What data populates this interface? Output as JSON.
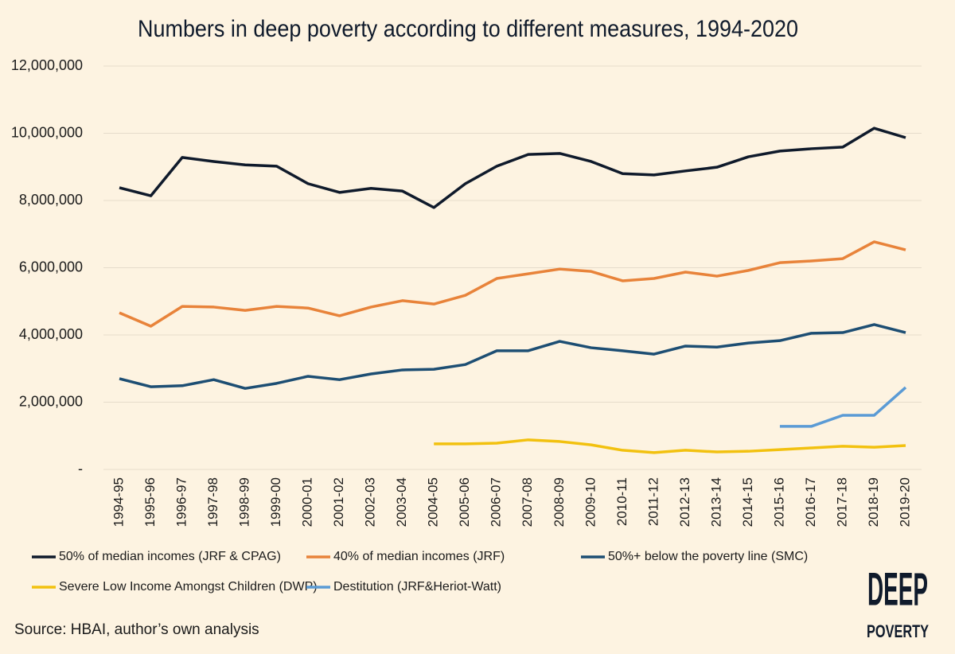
{
  "chart_data": {
    "type": "line",
    "title": "Numbers in deep poverty according to different measures, 1994-2020",
    "source": "Source: HBAI, author’s own analysis",
    "categories": [
      "1994-95",
      "1995-96",
      "1996-97",
      "1997-98",
      "1998-99",
      "1999-00",
      "2000-01",
      "2001-02",
      "2002-03",
      "2003-04",
      "2004-05",
      "2005-06",
      "2006-07",
      "2007-08",
      "2008-09",
      "2009-10",
      "2010-11",
      "2011-12",
      "2012-13",
      "2013-14",
      "2014-15",
      "2015-16",
      "2016-17",
      "2017-18",
      "2018-19",
      "2019-20"
    ],
    "ylim": [
      0,
      12000000
    ],
    "yticks": [
      {
        "value": 0,
        "label": "-"
      },
      {
        "value": 2000000,
        "label": "2,000,000"
      },
      {
        "value": 4000000,
        "label": "4,000,000"
      },
      {
        "value": 6000000,
        "label": "6,000,000"
      },
      {
        "value": 8000000,
        "label": "8,000,000"
      },
      {
        "value": 10000000,
        "label": "10,000,000"
      },
      {
        "value": 12000000,
        "label": "12,000,000"
      }
    ],
    "grid": true,
    "series": [
      {
        "name": "50% of median incomes (JRF & CPAG)",
        "color": "#0f1a2b",
        "values": [
          8380000,
          8140000,
          9280000,
          9160000,
          9060000,
          9020000,
          8500000,
          8240000,
          8360000,
          8280000,
          7790000,
          8500000,
          9020000,
          9370000,
          9400000,
          9160000,
          8800000,
          8760000,
          8880000,
          8990000,
          9300000,
          9470000,
          9540000,
          9590000,
          10150000,
          9870000
        ]
      },
      {
        "name": "40% of median incomes (JRF)",
        "color": "#e8833a",
        "values": [
          4660000,
          4260000,
          4850000,
          4830000,
          4730000,
          4850000,
          4800000,
          4570000,
          4830000,
          5020000,
          4920000,
          5180000,
          5680000,
          5820000,
          5960000,
          5890000,
          5610000,
          5680000,
          5870000,
          5750000,
          5920000,
          6150000,
          6200000,
          6270000,
          6770000,
          6530000
        ]
      },
      {
        "name": "50%+ below the poverty line (SMC)",
        "color": "#1d4e73",
        "values": [
          2700000,
          2460000,
          2490000,
          2670000,
          2410000,
          2560000,
          2770000,
          2670000,
          2840000,
          2960000,
          2980000,
          3120000,
          3530000,
          3530000,
          3810000,
          3620000,
          3530000,
          3430000,
          3670000,
          3640000,
          3760000,
          3830000,
          4050000,
          4070000,
          4310000,
          4070000
        ]
      },
      {
        "name": "Severe Low Income Amongst Children (DWP)",
        "color": "#f2c10f",
        "values": [
          null,
          null,
          null,
          null,
          null,
          null,
          null,
          null,
          null,
          null,
          760000,
          760000,
          780000,
          880000,
          830000,
          730000,
          570000,
          500000,
          570000,
          520000,
          540000,
          590000,
          640000,
          690000,
          660000,
          710000
        ]
      },
      {
        "name": "Destitution (JRF&Heriot-Watt)",
        "color": "#5b9bd5",
        "values": [
          null,
          null,
          null,
          null,
          null,
          null,
          null,
          null,
          null,
          null,
          null,
          null,
          null,
          null,
          null,
          null,
          null,
          null,
          null,
          null,
          null,
          1280000,
          1280000,
          1610000,
          1610000,
          2440000
        ]
      }
    ]
  },
  "logo": {
    "line1": "DEEP",
    "line2": "POVERTY"
  }
}
